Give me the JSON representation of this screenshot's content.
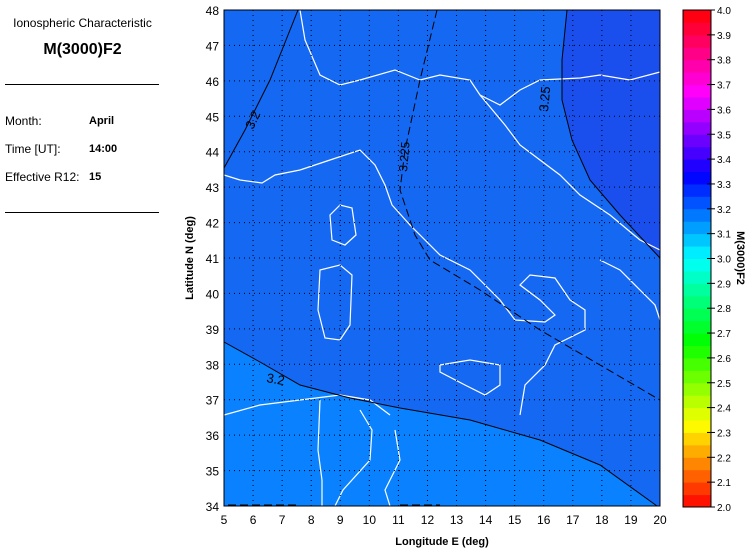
{
  "panel": {
    "heading": "Ionospheric Characteristic",
    "parameter": "M(3000)F2",
    "fields": [
      {
        "label": "Month:",
        "value": "April"
      },
      {
        "label": "Time [UT]:",
        "value": "14:00"
      },
      {
        "label": "Effective R12:",
        "value": "15"
      }
    ]
  },
  "chart_data": {
    "type": "heatmap",
    "xlabel": "Longitude E (deg)",
    "ylabel": "Latitude N (deg)",
    "xlim": [
      5,
      20
    ],
    "ylim": [
      34,
      48
    ],
    "xticks": [
      "5",
      "6",
      "7",
      "8",
      "9",
      "10",
      "11",
      "12",
      "13",
      "14",
      "15",
      "16",
      "17",
      "18",
      "19",
      "20"
    ],
    "yticks": [
      "34",
      "35",
      "36",
      "37",
      "38",
      "39",
      "40",
      "41",
      "42",
      "43",
      "44",
      "45",
      "46",
      "47",
      "48"
    ],
    "grid": true,
    "colorbar": {
      "label": "M(3000)F2",
      "range": [
        2.0,
        4.0
      ],
      "ticks": [
        "2.0",
        "2.1",
        "2.2",
        "2.3",
        "2.4",
        "2.5",
        "2.6",
        "2.7",
        "2.8",
        "2.9",
        "3.0",
        "3.1",
        "3.2",
        "3.3",
        "3.4",
        "3.5",
        "3.6",
        "3.7",
        "3.8",
        "3.9",
        "4.0"
      ]
    },
    "contours": [
      {
        "level": "3.2",
        "style": "solid"
      },
      {
        "level": "3.2",
        "style": "solid"
      },
      {
        "level": "3.225",
        "style": "dashed"
      },
      {
        "level": "3.25",
        "style": "solid"
      },
      {
        "level": "3.175",
        "style": "dashed"
      }
    ],
    "region_colors": {
      "south": "#0a82ff",
      "central": "#1568f2",
      "northeast": "#1a4fee"
    }
  }
}
